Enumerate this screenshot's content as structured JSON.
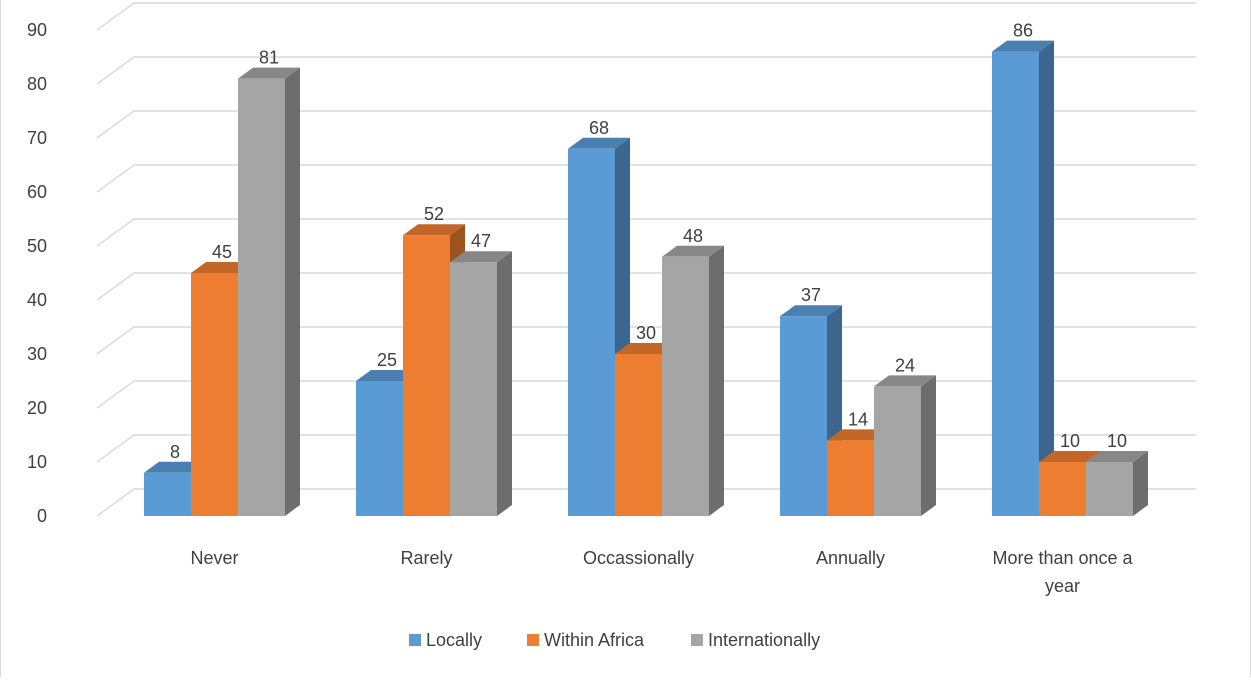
{
  "chart_data": {
    "type": "bar",
    "title": "",
    "xlabel": "",
    "ylabel": "",
    "ylim": [
      0,
      90
    ],
    "y_ticks": [
      0,
      10,
      20,
      30,
      40,
      50,
      60,
      70,
      80,
      90
    ],
    "grid": true,
    "legend_position": "bottom",
    "categories": [
      [
        "Never"
      ],
      [
        "Rarely"
      ],
      [
        "Occassionally"
      ],
      [
        "Annually"
      ],
      [
        "More than once a",
        "year"
      ]
    ],
    "series": [
      {
        "name": "Locally",
        "values": [
          8,
          25,
          68,
          37,
          86
        ],
        "color": "#5b9bd5"
      },
      {
        "name": "Within Africa",
        "values": [
          45,
          52,
          30,
          14,
          10
        ],
        "color": "#ed7d31"
      },
      {
        "name": "Internationally",
        "values": [
          81,
          47,
          48,
          24,
          10
        ],
        "color": "#a5a5a5"
      }
    ]
  }
}
